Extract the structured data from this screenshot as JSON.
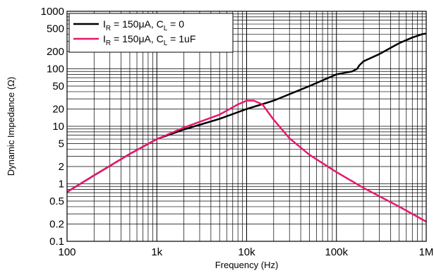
{
  "chart_data": {
    "type": "line",
    "title": "",
    "xlabel": "Frequency (Hz)",
    "ylabel": "Dynamic Impedance (Ω)",
    "xscale": "log",
    "yscale": "log",
    "xlim": [
      100,
      1000000
    ],
    "ylim": [
      0.1,
      1000
    ],
    "grid": true,
    "legend_position": "top-left",
    "x_ticks": [
      100,
      1000,
      10000,
      100000,
      1000000
    ],
    "x_tick_labels": [
      "100",
      "1k",
      "10k",
      "100k",
      "1M"
    ],
    "y_ticks": [
      0.1,
      0.2,
      0.5,
      1,
      2,
      5,
      10,
      20,
      50,
      100,
      200,
      500,
      1000
    ],
    "y_tick_labels": [
      "0.1",
      "0.2",
      "0.5",
      "1",
      "2",
      "5",
      "10",
      "20",
      "50",
      "100",
      "200",
      "500",
      "1000"
    ],
    "series": [
      {
        "legend": {
          "main": "I",
          "sub1": "R",
          "mid": " = 150μA, C",
          "sub2": "L",
          "end": " = 0"
        },
        "color": "#000000",
        "x": [
          100,
          200,
          500,
          1000,
          2000,
          5000,
          10000,
          20000,
          50000,
          100000,
          150000,
          170000,
          180000,
          200000,
          300000,
          500000,
          700000,
          900000,
          1000000
        ],
        "y": [
          0.72,
          1.4,
          3.3,
          6.0,
          8.8,
          13.5,
          20,
          28,
          50,
          80,
          90,
          100,
          115,
          135,
          180,
          280,
          350,
          400,
          410
        ]
      },
      {
        "legend": {
          "main": "I",
          "sub1": "R",
          "mid": " = 150μA, C",
          "sub2": "L",
          "end": " = 1uF"
        },
        "color": "#e8186d",
        "x": [
          100,
          200,
          500,
          1000,
          2000,
          5000,
          8000,
          10000,
          12000,
          15000,
          20000,
          30000,
          50000,
          100000,
          200000,
          500000,
          1000000
        ],
        "y": [
          0.72,
          1.4,
          3.3,
          6.0,
          9.5,
          16,
          24,
          28,
          28,
          24,
          13,
          6.2,
          3.2,
          1.6,
          0.85,
          0.4,
          0.22
        ]
      }
    ]
  }
}
